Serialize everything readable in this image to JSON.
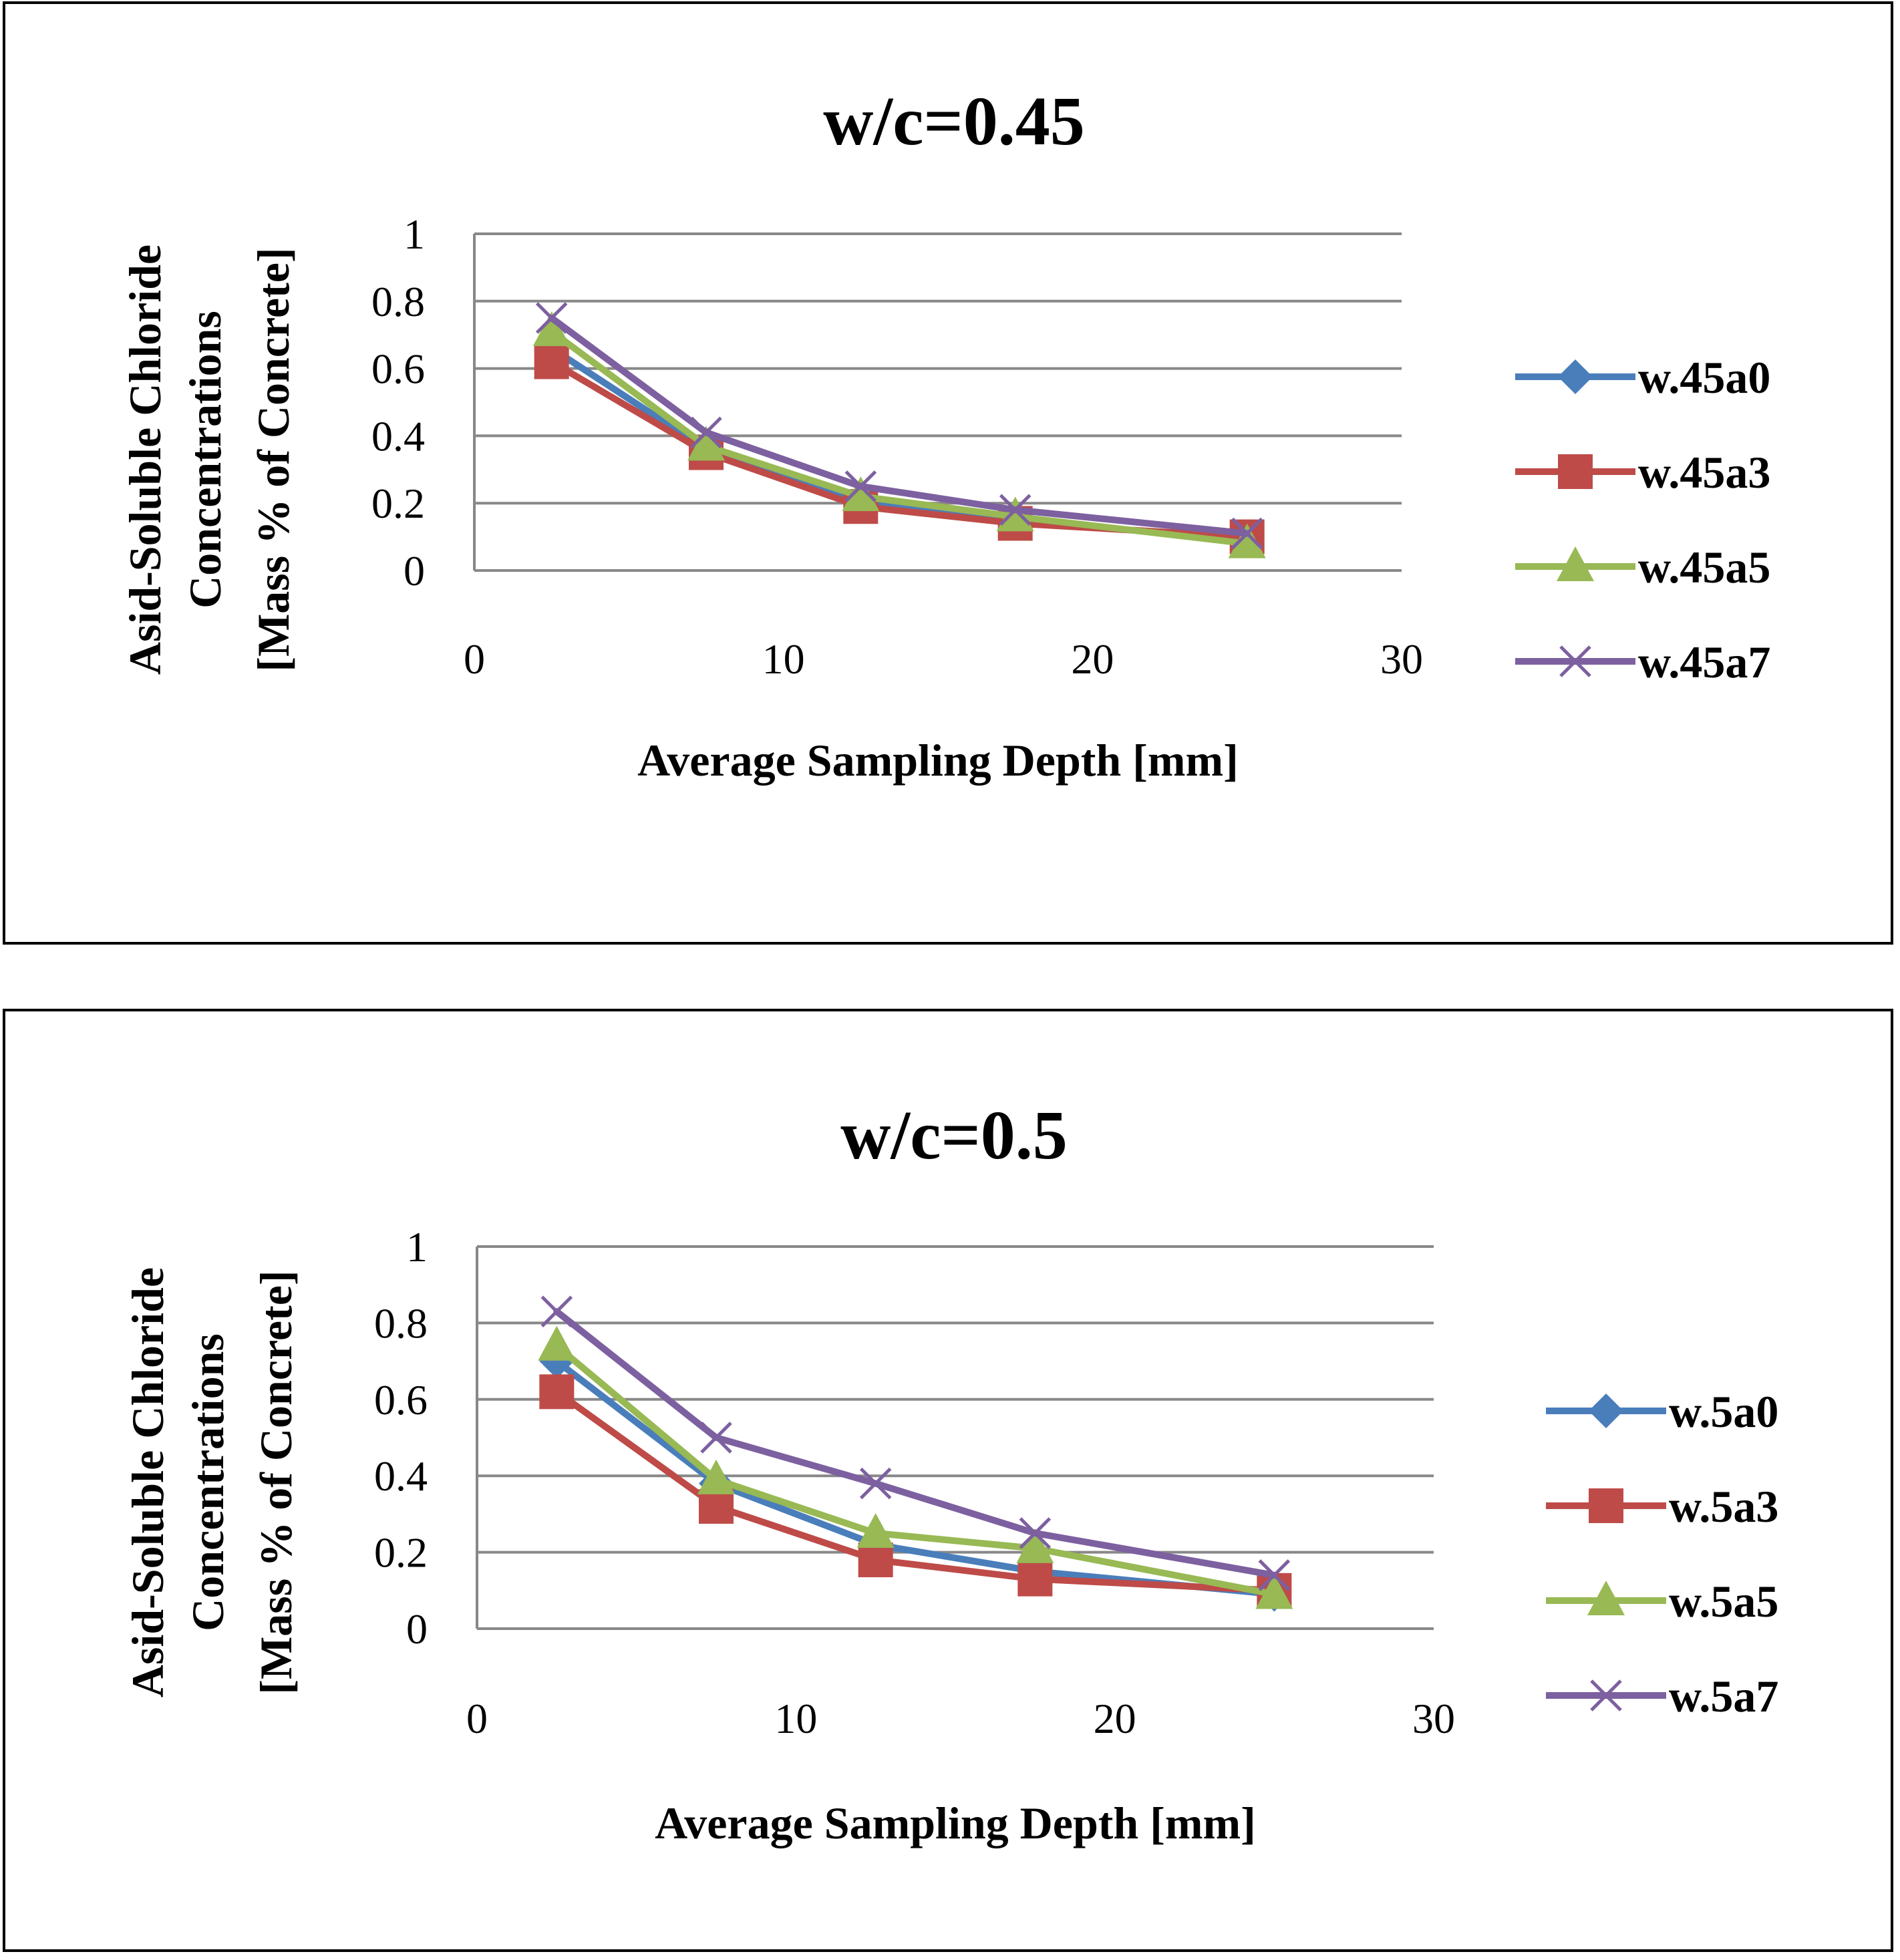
{
  "chart_data": [
    {
      "type": "line",
      "title": "w/c=0.45",
      "xlabel": "Average Sampling Depth [mm]",
      "ylabel_lines": [
        "Asid-Soluble Chloride",
        "Concentrations",
        "[Mass % of Concrete]"
      ],
      "xlim": [
        0,
        30
      ],
      "ylim": [
        0,
        1
      ],
      "xticks": [
        "0",
        "10",
        "20",
        "30"
      ],
      "yticks": [
        "0",
        "0.2",
        "0.4",
        "0.6",
        "0.8",
        "1"
      ],
      "grid": "horizontal",
      "legend_position": "right",
      "series": [
        {
          "name": "w.45a0",
          "color": "#4a7ebb",
          "marker": "diamond",
          "x": [
            2.5,
            7.5,
            12.5,
            17.5,
            25
          ],
          "y": [
            0.66,
            0.36,
            0.21,
            0.15,
            0.09
          ]
        },
        {
          "name": "w.45a3",
          "color": "#be4b48",
          "marker": "square",
          "x": [
            2.5,
            7.5,
            12.5,
            17.5,
            25
          ],
          "y": [
            0.62,
            0.35,
            0.19,
            0.14,
            0.1
          ]
        },
        {
          "name": "w.45a5",
          "color": "#98b954",
          "marker": "triangle",
          "x": [
            2.5,
            7.5,
            12.5,
            17.5,
            25
          ],
          "y": [
            0.71,
            0.37,
            0.22,
            0.16,
            0.08
          ]
        },
        {
          "name": "w.45a7",
          "color": "#7d60a0",
          "marker": "x",
          "x": [
            2.5,
            7.5,
            12.5,
            17.5,
            25
          ],
          "y": [
            0.75,
            0.41,
            0.25,
            0.18,
            0.11
          ]
        }
      ]
    },
    {
      "type": "line",
      "title": "w/c=0.5",
      "xlabel": "Average Sampling Depth [mm]",
      "ylabel_lines": [
        "Asid-Soluble Chloride",
        "Concentrations",
        "[Mass % of Concrete]"
      ],
      "xlim": [
        0,
        30
      ],
      "ylim": [
        0,
        1
      ],
      "xticks": [
        "0",
        "10",
        "20",
        "30"
      ],
      "yticks": [
        "0",
        "0.2",
        "0.4",
        "0.6",
        "0.8",
        "1"
      ],
      "grid": "horizontal",
      "legend_position": "right",
      "series": [
        {
          "name": "w.5a0",
          "color": "#4a7ebb",
          "marker": "diamond",
          "x": [
            2.5,
            7.5,
            12.5,
            17.5,
            25
          ],
          "y": [
            0.7,
            0.38,
            0.22,
            0.15,
            0.09
          ]
        },
        {
          "name": "w.5a3",
          "color": "#be4b48",
          "marker": "square",
          "x": [
            2.5,
            7.5,
            12.5,
            17.5,
            25
          ],
          "y": [
            0.62,
            0.32,
            0.18,
            0.13,
            0.1
          ]
        },
        {
          "name": "w.5a5",
          "color": "#98b954",
          "marker": "triangle",
          "x": [
            2.5,
            7.5,
            12.5,
            17.5,
            25
          ],
          "y": [
            0.74,
            0.39,
            0.25,
            0.21,
            0.09
          ]
        },
        {
          "name": "w.5a7",
          "color": "#7d60a0",
          "marker": "x",
          "x": [
            2.5,
            7.5,
            12.5,
            17.5,
            25
          ],
          "y": [
            0.83,
            0.5,
            0.38,
            0.25,
            0.14
          ]
        }
      ]
    }
  ]
}
